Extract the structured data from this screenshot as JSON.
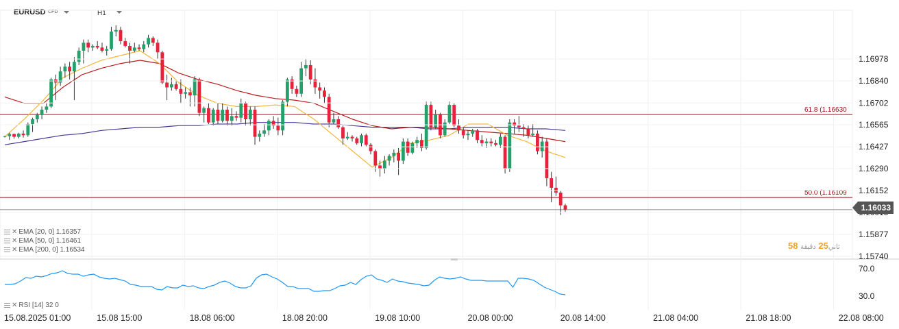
{
  "header": {
    "symbol": "EURUSD",
    "symbol_type": "CFD",
    "timeframe": "H1"
  },
  "current_price": "1.16033",
  "countdown": {
    "minutes": "58",
    "label_mid": "دقيقة",
    "seconds": "25",
    "label_end": "ثاني"
  },
  "indicators": [
    {
      "label": "EMA [20, 0]",
      "value": "1.16357"
    },
    {
      "label": "EMA [50, 0]",
      "value": "1.16461"
    },
    {
      "label": "EMA [200, 0]",
      "value": "1.16534"
    }
  ],
  "rsi_legend": {
    "label": "RSI [14]",
    "value": "32 0"
  },
  "fib_levels": [
    {
      "label": "61.8 (1.16630",
      "price": 1.1663
    },
    {
      "label": "50.0 (1.16109",
      "price": 1.16109
    }
  ],
  "colors": {
    "bull": "#26a06a",
    "bear": "#e8223b",
    "ema20": "#f3b63a",
    "ema50": "#b81c1c",
    "ema200": "#4a3a96",
    "fib": "#9b0f0f",
    "rsi": "#2196f3",
    "price_line": "#888888"
  },
  "chart_data": {
    "type": "candlestick",
    "x_ticks": [
      "15.08.2025 01:00",
      "15.08 15:00",
      "18.08 06:00",
      "18.08 20:00",
      "19.08 10:00",
      "20.08 00:00",
      "20.08 14:00",
      "21.08 04:00",
      "21.08 18:00",
      "22.08 08:00"
    ],
    "price_ticks": [
      "1.16978",
      "1.16840",
      "1.16702",
      "1.16565",
      "1.16427",
      "1.16290",
      "1.16152",
      "1.16015",
      "1.15877",
      "1.15740"
    ],
    "price_range": [
      1.1574,
      1.17116
    ],
    "rsi_ticks": [
      "70.0",
      "30.0"
    ],
    "rsi_range": [
      20,
      80
    ],
    "candles": [
      [
        1.1649,
        1.16497,
        1.16485,
        1.16494
      ],
      [
        1.16494,
        1.16515,
        1.1647,
        1.16508
      ],
      [
        1.16508,
        1.1651,
        1.16478,
        1.1649
      ],
      [
        1.1649,
        1.16515,
        1.1648,
        1.1651
      ],
      [
        1.1651,
        1.1653,
        1.16485,
        1.165
      ],
      [
        1.165,
        1.1658,
        1.1649,
        1.1657
      ],
      [
        1.1657,
        1.1661,
        1.1652,
        1.166
      ],
      [
        1.166,
        1.1664,
        1.1658,
        1.1663
      ],
      [
        1.1663,
        1.1668,
        1.166,
        1.1666
      ],
      [
        1.1666,
        1.167,
        1.1664,
        1.1668
      ],
      [
        1.1668,
        1.1686,
        1.1667,
        1.1685
      ],
      [
        1.1685,
        1.1688,
        1.1672,
        1.1683
      ],
      [
        1.1683,
        1.1693,
        1.1681,
        1.169
      ],
      [
        1.169,
        1.1695,
        1.1686,
        1.1693
      ],
      [
        1.1693,
        1.1696,
        1.1685,
        1.169
      ],
      [
        1.169,
        1.1699,
        1.1672,
        1.1696
      ],
      [
        1.1696,
        1.1705,
        1.1694,
        1.1703
      ],
      [
        1.1703,
        1.171,
        1.1695,
        1.1708
      ],
      [
        1.1708,
        1.171,
        1.1702,
        1.1705
      ],
      [
        1.1705,
        1.1707,
        1.1703,
        1.1706
      ],
      [
        1.1706,
        1.1709,
        1.1704,
        1.1705
      ],
      [
        1.1705,
        1.1708,
        1.1702,
        1.1703
      ],
      [
        1.1703,
        1.1706,
        1.17,
        1.1704
      ],
      [
        1.1704,
        1.1718,
        1.1703,
        1.1715
      ],
      [
        1.1715,
        1.1719,
        1.1712,
        1.1716
      ],
      [
        1.1716,
        1.1718,
        1.1707,
        1.1709
      ],
      [
        1.1709,
        1.1711,
        1.1705,
        1.1706
      ],
      [
        1.1706,
        1.1708,
        1.1695,
        1.1703
      ],
      [
        1.1703,
        1.1708,
        1.1702,
        1.1705
      ],
      [
        1.1705,
        1.1707,
        1.1703,
        1.1704
      ],
      [
        1.1704,
        1.1709,
        1.1702,
        1.1707
      ],
      [
        1.1707,
        1.1713,
        1.1705,
        1.1711
      ],
      [
        1.1711,
        1.1712,
        1.1706,
        1.1708
      ],
      [
        1.1708,
        1.171,
        1.1698,
        1.1702
      ],
      [
        1.1702,
        1.1703,
        1.1682,
        1.1683
      ],
      [
        1.1683,
        1.1688,
        1.1672,
        1.168
      ],
      [
        1.168,
        1.1686,
        1.1678,
        1.1682
      ],
      [
        1.1682,
        1.1684,
        1.1678,
        1.1679
      ],
      [
        1.1679,
        1.1685,
        1.167,
        1.1676
      ],
      [
        1.1676,
        1.168,
        1.1673,
        1.1677
      ],
      [
        1.1677,
        1.168,
        1.1668,
        1.1675
      ],
      [
        1.1675,
        1.1687,
        1.1668,
        1.1685
      ],
      [
        1.1685,
        1.1686,
        1.1662,
        1.1664
      ],
      [
        1.1664,
        1.1668,
        1.1658,
        1.1667
      ],
      [
        1.1667,
        1.167,
        1.1657,
        1.1658
      ],
      [
        1.1658,
        1.1667,
        1.1656,
        1.1666
      ],
      [
        1.1666,
        1.167,
        1.1657,
        1.1659
      ],
      [
        1.1659,
        1.167,
        1.1658,
        1.1666
      ],
      [
        1.1666,
        1.1668,
        1.1656,
        1.1659
      ],
      [
        1.1659,
        1.1667,
        1.1656,
        1.1662
      ],
      [
        1.1662,
        1.1665,
        1.1659,
        1.1661
      ],
      [
        1.1661,
        1.1673,
        1.1658,
        1.167
      ],
      [
        1.167,
        1.1671,
        1.1656,
        1.166
      ],
      [
        1.166,
        1.1668,
        1.1656,
        1.1666
      ],
      [
        1.1666,
        1.1668,
        1.1644,
        1.1649
      ],
      [
        1.1649,
        1.1653,
        1.1646,
        1.1651
      ],
      [
        1.1651,
        1.1657,
        1.1649,
        1.1653
      ],
      [
        1.1653,
        1.166,
        1.165,
        1.1659
      ],
      [
        1.1659,
        1.1662,
        1.1654,
        1.1656
      ],
      [
        1.1656,
        1.1661,
        1.165,
        1.1653
      ],
      [
        1.1653,
        1.1672,
        1.165,
        1.1671
      ],
      [
        1.1671,
        1.1686,
        1.1668,
        1.1685
      ],
      [
        1.1685,
        1.1687,
        1.1676,
        1.1679
      ],
      [
        1.1679,
        1.1681,
        1.1674,
        1.1676
      ],
      [
        1.1676,
        1.1696,
        1.1674,
        1.1692
      ],
      [
        1.1692,
        1.1698,
        1.1687,
        1.1694
      ],
      [
        1.1694,
        1.1697,
        1.1682,
        1.1685
      ],
      [
        1.1685,
        1.1692,
        1.1676,
        1.168
      ],
      [
        1.168,
        1.1683,
        1.1673,
        1.1678
      ],
      [
        1.1678,
        1.168,
        1.167,
        1.1674
      ],
      [
        1.1674,
        1.1676,
        1.1655,
        1.1658
      ],
      [
        1.1658,
        1.1664,
        1.1657,
        1.166
      ],
      [
        1.166,
        1.1662,
        1.1654,
        1.1655
      ],
      [
        1.1655,
        1.1656,
        1.1644,
        1.1648
      ],
      [
        1.1648,
        1.1652,
        1.1647,
        1.1649
      ],
      [
        1.1649,
        1.165,
        1.1646,
        1.1648
      ],
      [
        1.1648,
        1.1649,
        1.1644,
        1.1645
      ],
      [
        1.1645,
        1.1651,
        1.1643,
        1.165
      ],
      [
        1.165,
        1.1651,
        1.1643,
        1.1644
      ],
      [
        1.1644,
        1.1645,
        1.1638,
        1.164
      ],
      [
        1.164,
        1.1641,
        1.1627,
        1.1631
      ],
      [
        1.1631,
        1.1634,
        1.1624,
        1.1629
      ],
      [
        1.1629,
        1.1637,
        1.1626,
        1.1634
      ],
      [
        1.1634,
        1.1638,
        1.1631,
        1.1637
      ],
      [
        1.1637,
        1.1641,
        1.1633,
        1.1639
      ],
      [
        1.1639,
        1.1642,
        1.1625,
        1.1634
      ],
      [
        1.1634,
        1.1648,
        1.1632,
        1.1646
      ],
      [
        1.1646,
        1.1648,
        1.1637,
        1.1639
      ],
      [
        1.1639,
        1.1646,
        1.1638,
        1.1645
      ],
      [
        1.1645,
        1.1649,
        1.1642,
        1.1647
      ],
      [
        1.1647,
        1.1651,
        1.164,
        1.1642
      ],
      [
        1.1642,
        1.1671,
        1.1641,
        1.1669
      ],
      [
        1.1669,
        1.1671,
        1.1653,
        1.1655
      ],
      [
        1.1655,
        1.1666,
        1.1654,
        1.1663
      ],
      [
        1.1663,
        1.1664,
        1.1648,
        1.165
      ],
      [
        1.165,
        1.166,
        1.1649,
        1.1658
      ],
      [
        1.1658,
        1.1671,
        1.1657,
        1.1669
      ],
      [
        1.1669,
        1.167,
        1.1655,
        1.1656
      ],
      [
        1.1656,
        1.166,
        1.1651,
        1.1653
      ],
      [
        1.1653,
        1.1655,
        1.1648,
        1.165
      ],
      [
        1.165,
        1.1653,
        1.1647,
        1.1651
      ],
      [
        1.1651,
        1.1654,
        1.1649,
        1.1653
      ],
      [
        1.1653,
        1.1654,
        1.1645,
        1.1647
      ],
      [
        1.1647,
        1.165,
        1.1643,
        1.1645
      ],
      [
        1.1645,
        1.1648,
        1.1642,
        1.1646
      ],
      [
        1.1646,
        1.1648,
        1.1643,
        1.1645
      ],
      [
        1.1645,
        1.1647,
        1.1643,
        1.1644
      ],
      [
        1.1644,
        1.1651,
        1.1642,
        1.1649
      ],
      [
        1.1649,
        1.165,
        1.1626,
        1.1629
      ],
      [
        1.1629,
        1.166,
        1.1627,
        1.1658
      ],
      [
        1.1658,
        1.166,
        1.1651,
        1.1656
      ],
      [
        1.1656,
        1.1662,
        1.1652,
        1.1655
      ],
      [
        1.1655,
        1.1657,
        1.1649,
        1.1654
      ],
      [
        1.1654,
        1.1656,
        1.1648,
        1.165
      ],
      [
        1.165,
        1.1657,
        1.1649,
        1.1651
      ],
      [
        1.1651,
        1.1653,
        1.1638,
        1.164
      ],
      [
        1.164,
        1.1649,
        1.1636,
        1.1646
      ],
      [
        1.1646,
        1.1648,
        1.1618,
        1.1623
      ],
      [
        1.1623,
        1.1627,
        1.1608,
        1.1617
      ],
      [
        1.1617,
        1.1624,
        1.1612,
        1.1614
      ],
      [
        1.1614,
        1.1615,
        1.16,
        1.1606
      ],
      [
        1.1606,
        1.1607,
        1.1602,
        1.16033
      ]
    ],
    "ema20": [
      1.1649,
      1.166,
      1.1672,
      1.1686,
      1.1692,
      1.1697,
      1.17,
      1.1703,
      1.1695,
      1.1683,
      1.1675,
      1.167,
      1.1668,
      1.1668,
      1.1669,
      1.1668,
      1.166,
      1.165,
      1.164,
      1.163,
      1.1636,
      1.1645,
      1.1647,
      1.165,
      1.1657,
      1.1657,
      1.165,
      1.1646,
      1.164,
      1.1636
    ],
    "ema50": [
      1.1674,
      1.167,
      1.167,
      1.168,
      1.1688,
      1.1692,
      1.1695,
      1.1697,
      1.1695,
      1.1689,
      1.1685,
      1.1682,
      1.1678,
      1.1675,
      1.1673,
      1.1672,
      1.167,
      1.1665,
      1.166,
      1.1656,
      1.1654,
      1.1655,
      1.1655,
      1.1654,
      1.1653,
      1.1652,
      1.1651,
      1.165,
      1.1648,
      1.1646
    ],
    "ema200": [
      1.1644,
      1.1646,
      1.1648,
      1.165,
      1.1651,
      1.1653,
      1.1654,
      1.1655,
      1.1655,
      1.1656,
      1.1656,
      1.1657,
      1.1657,
      1.1658,
      1.1658,
      1.1658,
      1.1657,
      1.1657,
      1.1656,
      1.1655,
      1.1655,
      1.1655,
      1.1654,
      1.1654,
      1.1655,
      1.1655,
      1.1655,
      1.1654,
      1.1654,
      1.1653
    ],
    "rsi": [
      47,
      47,
      48,
      52,
      57,
      56,
      59,
      58,
      60,
      63,
      64,
      67,
      63,
      62,
      62,
      59,
      61,
      62,
      58,
      56,
      55,
      56,
      54,
      52,
      47,
      46,
      44,
      44,
      44,
      40,
      39,
      44,
      42,
      42,
      46,
      44,
      45,
      42,
      41,
      44,
      46,
      50,
      52,
      49,
      44,
      42,
      42,
      45,
      56,
      61,
      62,
      58,
      55,
      50,
      44,
      44,
      41,
      41,
      41,
      37,
      37,
      38,
      38,
      41,
      45,
      46,
      50,
      47,
      54,
      59,
      61,
      55,
      53,
      50,
      55,
      52,
      51,
      49,
      48,
      47,
      45,
      46,
      53,
      58,
      56,
      55,
      56,
      58,
      55,
      53,
      53,
      53,
      52,
      52,
      52,
      52,
      52,
      43,
      56,
      56,
      55,
      53,
      48,
      43,
      40,
      37,
      33,
      32
    ]
  }
}
